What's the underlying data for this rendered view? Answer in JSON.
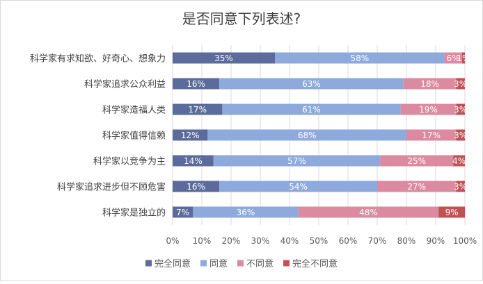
{
  "chart_data": {
    "type": "bar",
    "orientation": "horizontal",
    "stacked": "percent",
    "title": "是否同意下列表述?",
    "categories": [
      "科学家有求知欲、好奇心、想象力",
      "科学家追求公众利益",
      "科学家造福人类",
      "科学家值得信赖",
      "科学家以竞争为主",
      "科学家追求进步但不顾危害",
      "科学家是独立的"
    ],
    "series": [
      {
        "name": "完全同意",
        "color": "#5b6c9c",
        "values": [
          35,
          16,
          17,
          12,
          14,
          16,
          7
        ]
      },
      {
        "name": "同意",
        "color": "#8eaadc",
        "values": [
          58,
          63,
          61,
          68,
          57,
          54,
          36
        ]
      },
      {
        "name": "不同意",
        "color": "#dc8aa0",
        "values": [
          6,
          18,
          19,
          17,
          25,
          27,
          48
        ]
      },
      {
        "name": "完全不同意",
        "color": "#c05256",
        "values": [
          1,
          3,
          3,
          3,
          4,
          3,
          9
        ]
      }
    ],
    "data_labels": [
      [
        "35%",
        "58%",
        "6%",
        "1%"
      ],
      [
        "16%",
        "63%",
        "18%",
        "3%"
      ],
      [
        "17%",
        "61%",
        "19%",
        "3%"
      ],
      [
        "12%",
        "68%",
        "17%",
        "3%"
      ],
      [
        "14%",
        "57%",
        "25%",
        "4%"
      ],
      [
        "16%",
        "54%",
        "27%",
        "3%"
      ],
      [
        "7%",
        "36%",
        "48%",
        "9%"
      ]
    ],
    "x_ticks": [
      "0%",
      "10%",
      "20%",
      "30%",
      "40%",
      "50%",
      "60%",
      "70%",
      "80%",
      "90%",
      "100%"
    ],
    "xlim": [
      0,
      100
    ],
    "grid": true,
    "legend_position": "bottom"
  }
}
